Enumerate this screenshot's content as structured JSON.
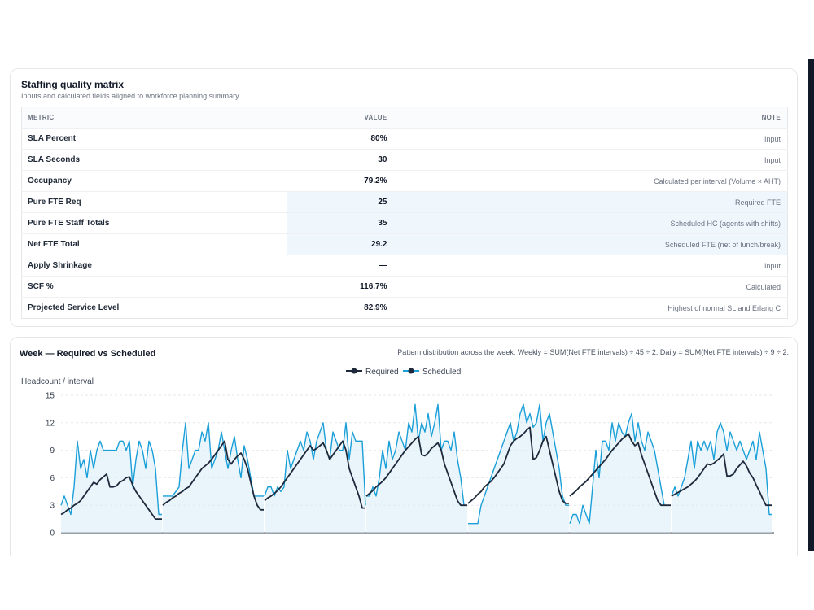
{
  "matrix": {
    "title": "Staffing quality matrix",
    "subtitle": "Inputs and calculated fields aligned to workforce planning summary.",
    "headers": {
      "metric": "METRIC",
      "value": "VALUE",
      "note": "NOTE"
    },
    "rows": [
      {
        "metric": "SLA Percent",
        "value": "80%",
        "note": "Input",
        "highlight": false
      },
      {
        "metric": "SLA Seconds",
        "value": "30",
        "note": "Input",
        "highlight": false
      },
      {
        "metric": "Occupancy",
        "value": "79.2%",
        "note": "Calculated per interval (Volume × AHT)",
        "highlight": false
      },
      {
        "metric": "Pure FTE Req",
        "value": "25",
        "note": "Required FTE",
        "highlight": true
      },
      {
        "metric": "Pure FTE Staff Totals",
        "value": "35",
        "note": "Scheduled HC (agents with shifts)",
        "highlight": true
      },
      {
        "metric": "Net FTE Total",
        "value": "29.2",
        "note": "Scheduled FTE (net of lunch/break)",
        "highlight": true
      },
      {
        "metric": "Apply Shrinkage",
        "value": "—",
        "note": "Input",
        "highlight": false
      },
      {
        "metric": "SCF %",
        "value": "116.7%",
        "note": "Calculated",
        "highlight": false
      },
      {
        "metric": "Projected Service Level",
        "value": "82.9%",
        "note": "Highest of normal SL and Erlang C",
        "highlight": false
      }
    ]
  },
  "chart": {
    "title": "Week — Required vs Scheduled",
    "description": "Pattern distribution across the week. Weekly = SUM(Net FTE intervals) ÷ 45 ÷ 2. Daily = SUM(Net FTE intervals) ÷ 9 ÷ 2."
  },
  "chart_data": {
    "type": "line",
    "ylabel": "Headcount / interval",
    "ylim": [
      0,
      15
    ],
    "yticks": [
      0,
      3,
      6,
      9,
      12,
      15
    ],
    "grid": true,
    "legend": "top-center",
    "colors": {
      "required": "#1e293b",
      "scheduled": "#1a9fd8",
      "fill": "#d7ecf8"
    },
    "series": [
      {
        "name": "Required",
        "days": [
          [
            2,
            2.2,
            2.5,
            2.7,
            3,
            3.2,
            3.5,
            4,
            4.5,
            5,
            5.5,
            5.3,
            5.8,
            6.1,
            6.4,
            5,
            5,
            5.1,
            5.5,
            5.7,
            6,
            6.1,
            5.2,
            4.5,
            4,
            3.5,
            3,
            2.5,
            2,
            1.5,
            1.5,
            1.5
          ],
          [
            3,
            3.3,
            3.5,
            3.8,
            4,
            4.3,
            4.5,
            4.8,
            5,
            5.5,
            6,
            6.5,
            7,
            7.3,
            7.6,
            8,
            8.5,
            9,
            9.5,
            10,
            8,
            7.5,
            8,
            8.4,
            8.7,
            8,
            7,
            5.5,
            4,
            3,
            2.5,
            2.5
          ],
          [
            3.5,
            3.8,
            4,
            4.3,
            4.6,
            5,
            5.5,
            6,
            6.5,
            7,
            7.5,
            8,
            8.5,
            9,
            9.5,
            9,
            9.2,
            9.5,
            9.8,
            9,
            8,
            8.5,
            9,
            9.5,
            10,
            9,
            7,
            6,
            5,
            4,
            2.7,
            2.7
          ],
          [
            4,
            4.3,
            4.6,
            5,
            5.3,
            5.6,
            6,
            6.5,
            7,
            7.5,
            8,
            8.5,
            9,
            9.4,
            9.8,
            10.2,
            10.5,
            8.5,
            8.4,
            8.7,
            9.2,
            9.5,
            9.8,
            9,
            7.5,
            6.5,
            5.5,
            4.5,
            3.5,
            3,
            3,
            3
          ],
          [
            3.2,
            3.5,
            3.8,
            4.2,
            4.5,
            5,
            5.3,
            5.6,
            6,
            6.5,
            7,
            7.5,
            8.5,
            9.5,
            10,
            10.3,
            10.5,
            10.8,
            11.2,
            11.5,
            8,
            8.2,
            9,
            10,
            10.5,
            9,
            7.5,
            6,
            4.5,
            3.5,
            3.2,
            3.2
          ],
          [
            4,
            4.3,
            4.6,
            5,
            5.3,
            5.6,
            6,
            6.4,
            6.8,
            7.2,
            7.6,
            8,
            8.5,
            9,
            9.4,
            9.8,
            10.2,
            10.5,
            10.8,
            10,
            9.5,
            9.8,
            8.5,
            7.5,
            6.5,
            5.5,
            4.5,
            3.5,
            3,
            3,
            3,
            3
          ],
          [
            4,
            4.2,
            4.4,
            4.6,
            4.8,
            5,
            5.3,
            5.6,
            6,
            6.5,
            7,
            7.5,
            7.4,
            7.6,
            7.9,
            8.2,
            8.6,
            6.2,
            6.2,
            6.4,
            7,
            7.4,
            7.8,
            7.3,
            6.5,
            6,
            5.2,
            4.5,
            3.7,
            3,
            3,
            3
          ]
        ]
      },
      {
        "name": "Scheduled",
        "days": [
          [
            3,
            4,
            3,
            2,
            5,
            10,
            7,
            8,
            6,
            9,
            7,
            9,
            10,
            9,
            9,
            9,
            9,
            9,
            10,
            10,
            9,
            10,
            5,
            8,
            10,
            9,
            7,
            10,
            9,
            7,
            2,
            2
          ],
          [
            4,
            4,
            4,
            4,
            4.5,
            5,
            9,
            12,
            7,
            8,
            9,
            9,
            11,
            10,
            12,
            7,
            8,
            9,
            11,
            9,
            7,
            9,
            10.5,
            8,
            6,
            9.5,
            8,
            6,
            4,
            4,
            4,
            4
          ],
          [
            4,
            5,
            5,
            4,
            5,
            4.5,
            5,
            9,
            7,
            8,
            9,
            10,
            9,
            11,
            10,
            8,
            10,
            11,
            12,
            9,
            8,
            11,
            10,
            9,
            9,
            12,
            8,
            11,
            10,
            10,
            10,
            3
          ],
          [
            4,
            4,
            5,
            4,
            6,
            9,
            7,
            10,
            8,
            9,
            11,
            10,
            9,
            12,
            11,
            14,
            10,
            12,
            11,
            13,
            10.5,
            12,
            14,
            9,
            10,
            10,
            9,
            11,
            8,
            6,
            3,
            3
          ],
          [
            1,
            1,
            1,
            1,
            3,
            4,
            5,
            6,
            7,
            8,
            9,
            10,
            11,
            12,
            10,
            11,
            13,
            14,
            12,
            13,
            11.5,
            12,
            14,
            10,
            12,
            13,
            11,
            9,
            7,
            4,
            3,
            3
          ],
          [
            1,
            2,
            2,
            1,
            3,
            2,
            1,
            5,
            9,
            6,
            10,
            10,
            9,
            12,
            10,
            12,
            11,
            10.5,
            12,
            13,
            10,
            12,
            10,
            9,
            11,
            10,
            9,
            7,
            5,
            3,
            3,
            3
          ],
          [
            4,
            5,
            4,
            5,
            6,
            8,
            10,
            7,
            10,
            9,
            10,
            9,
            10,
            8,
            11,
            12,
            11,
            9,
            11,
            10,
            9,
            10,
            9,
            8,
            9,
            10,
            8,
            11,
            9,
            7,
            2,
            2
          ]
        ]
      }
    ]
  }
}
